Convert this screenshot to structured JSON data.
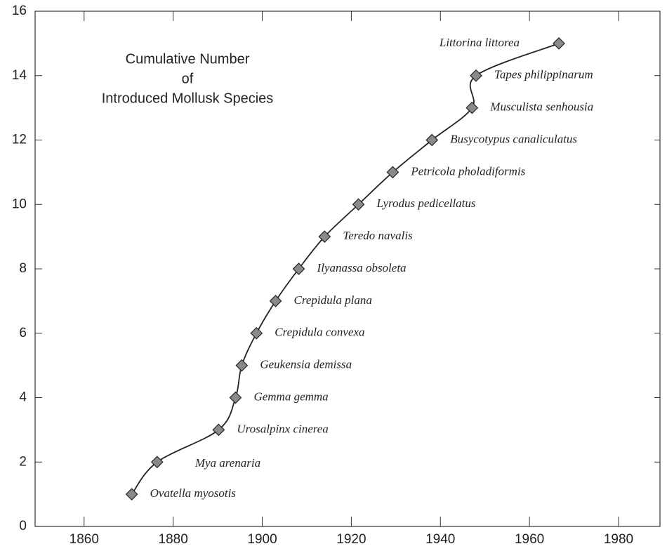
{
  "chart_data": {
    "type": "line",
    "title_lines": [
      "Cumulative Number",
      "of",
      "Introduced Mollusk Species"
    ],
    "x": [
      1870.7,
      1876.4,
      1890.2,
      1894,
      1895.4,
      1898.7,
      1903,
      1908.2,
      1914,
      1921.6,
      1929.3,
      1938.1,
      1947.1,
      1948,
      1966.6
    ],
    "values": [
      1,
      2,
      3,
      4,
      5,
      6,
      7,
      8,
      9,
      10,
      11,
      12,
      13,
      14,
      15
    ],
    "point_labels": [
      "Ovatella myosotis",
      "Mya arenaria",
      "Urosalpinx cinerea",
      "Gemma gemma",
      "Geukensia demissa",
      "Crepidula convexa",
      "Crepidula plana",
      "Ilyanassa obsoleta",
      "Teredo navalis",
      "Lyrodus pedicellatus",
      "Petricola pholadiformis",
      "Busycotypus canaliculatus",
      "Musculista senhousia",
      "Tapes philippinarum",
      "Littorina littorea"
    ],
    "color": "#222222",
    "marker_color": "#8a8a8a",
    "xlim": [
      1849,
      1989.3
    ],
    "xticks": [
      1860,
      1880,
      1900,
      1920,
      1940,
      1960,
      1980
    ],
    "ylim": [
      0,
      16
    ],
    "yticks": [
      0,
      2,
      4,
      6,
      8,
      10,
      12,
      14,
      16
    ]
  }
}
